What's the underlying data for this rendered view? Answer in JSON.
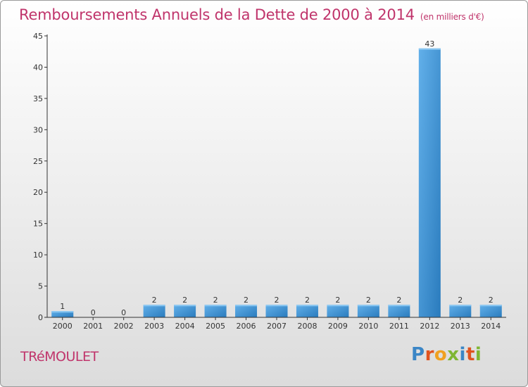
{
  "header": {
    "title": "Remboursements Annuels de la Dette de 2000 à 2014",
    "unit": "(en milliers d'€)"
  },
  "footer": {
    "commune": "TRéMOULET",
    "brand": "Proxiti",
    "brand_colors": [
      "#3b86c6",
      "#e0531f",
      "#f0a020",
      "#7fb632",
      "#3b86c6",
      "#e0531f",
      "#7fb632"
    ]
  },
  "colors": {
    "bar": "#3e97d8",
    "bar_light": "#62b0ea",
    "bar_dark": "#2a7bbd",
    "title": "#c0346b",
    "axis": "#333333"
  },
  "chart_data": {
    "type": "bar",
    "title": "Remboursements Annuels de la Dette de 2000 à 2014",
    "ylabel": "",
    "xlabel": "",
    "categories": [
      "2000",
      "2001",
      "2002",
      "2003",
      "2004",
      "2005",
      "2006",
      "2007",
      "2008",
      "2009",
      "2010",
      "2011",
      "2012",
      "2013",
      "2014"
    ],
    "values": [
      1,
      0,
      0,
      2,
      2,
      2,
      2,
      2,
      2,
      2,
      2,
      2,
      43,
      2,
      2
    ],
    "ylim": [
      0,
      45
    ],
    "yticks": [
      0,
      5,
      10,
      15,
      20,
      25,
      30,
      35,
      40,
      45
    ],
    "grid": false,
    "legend": "none"
  }
}
